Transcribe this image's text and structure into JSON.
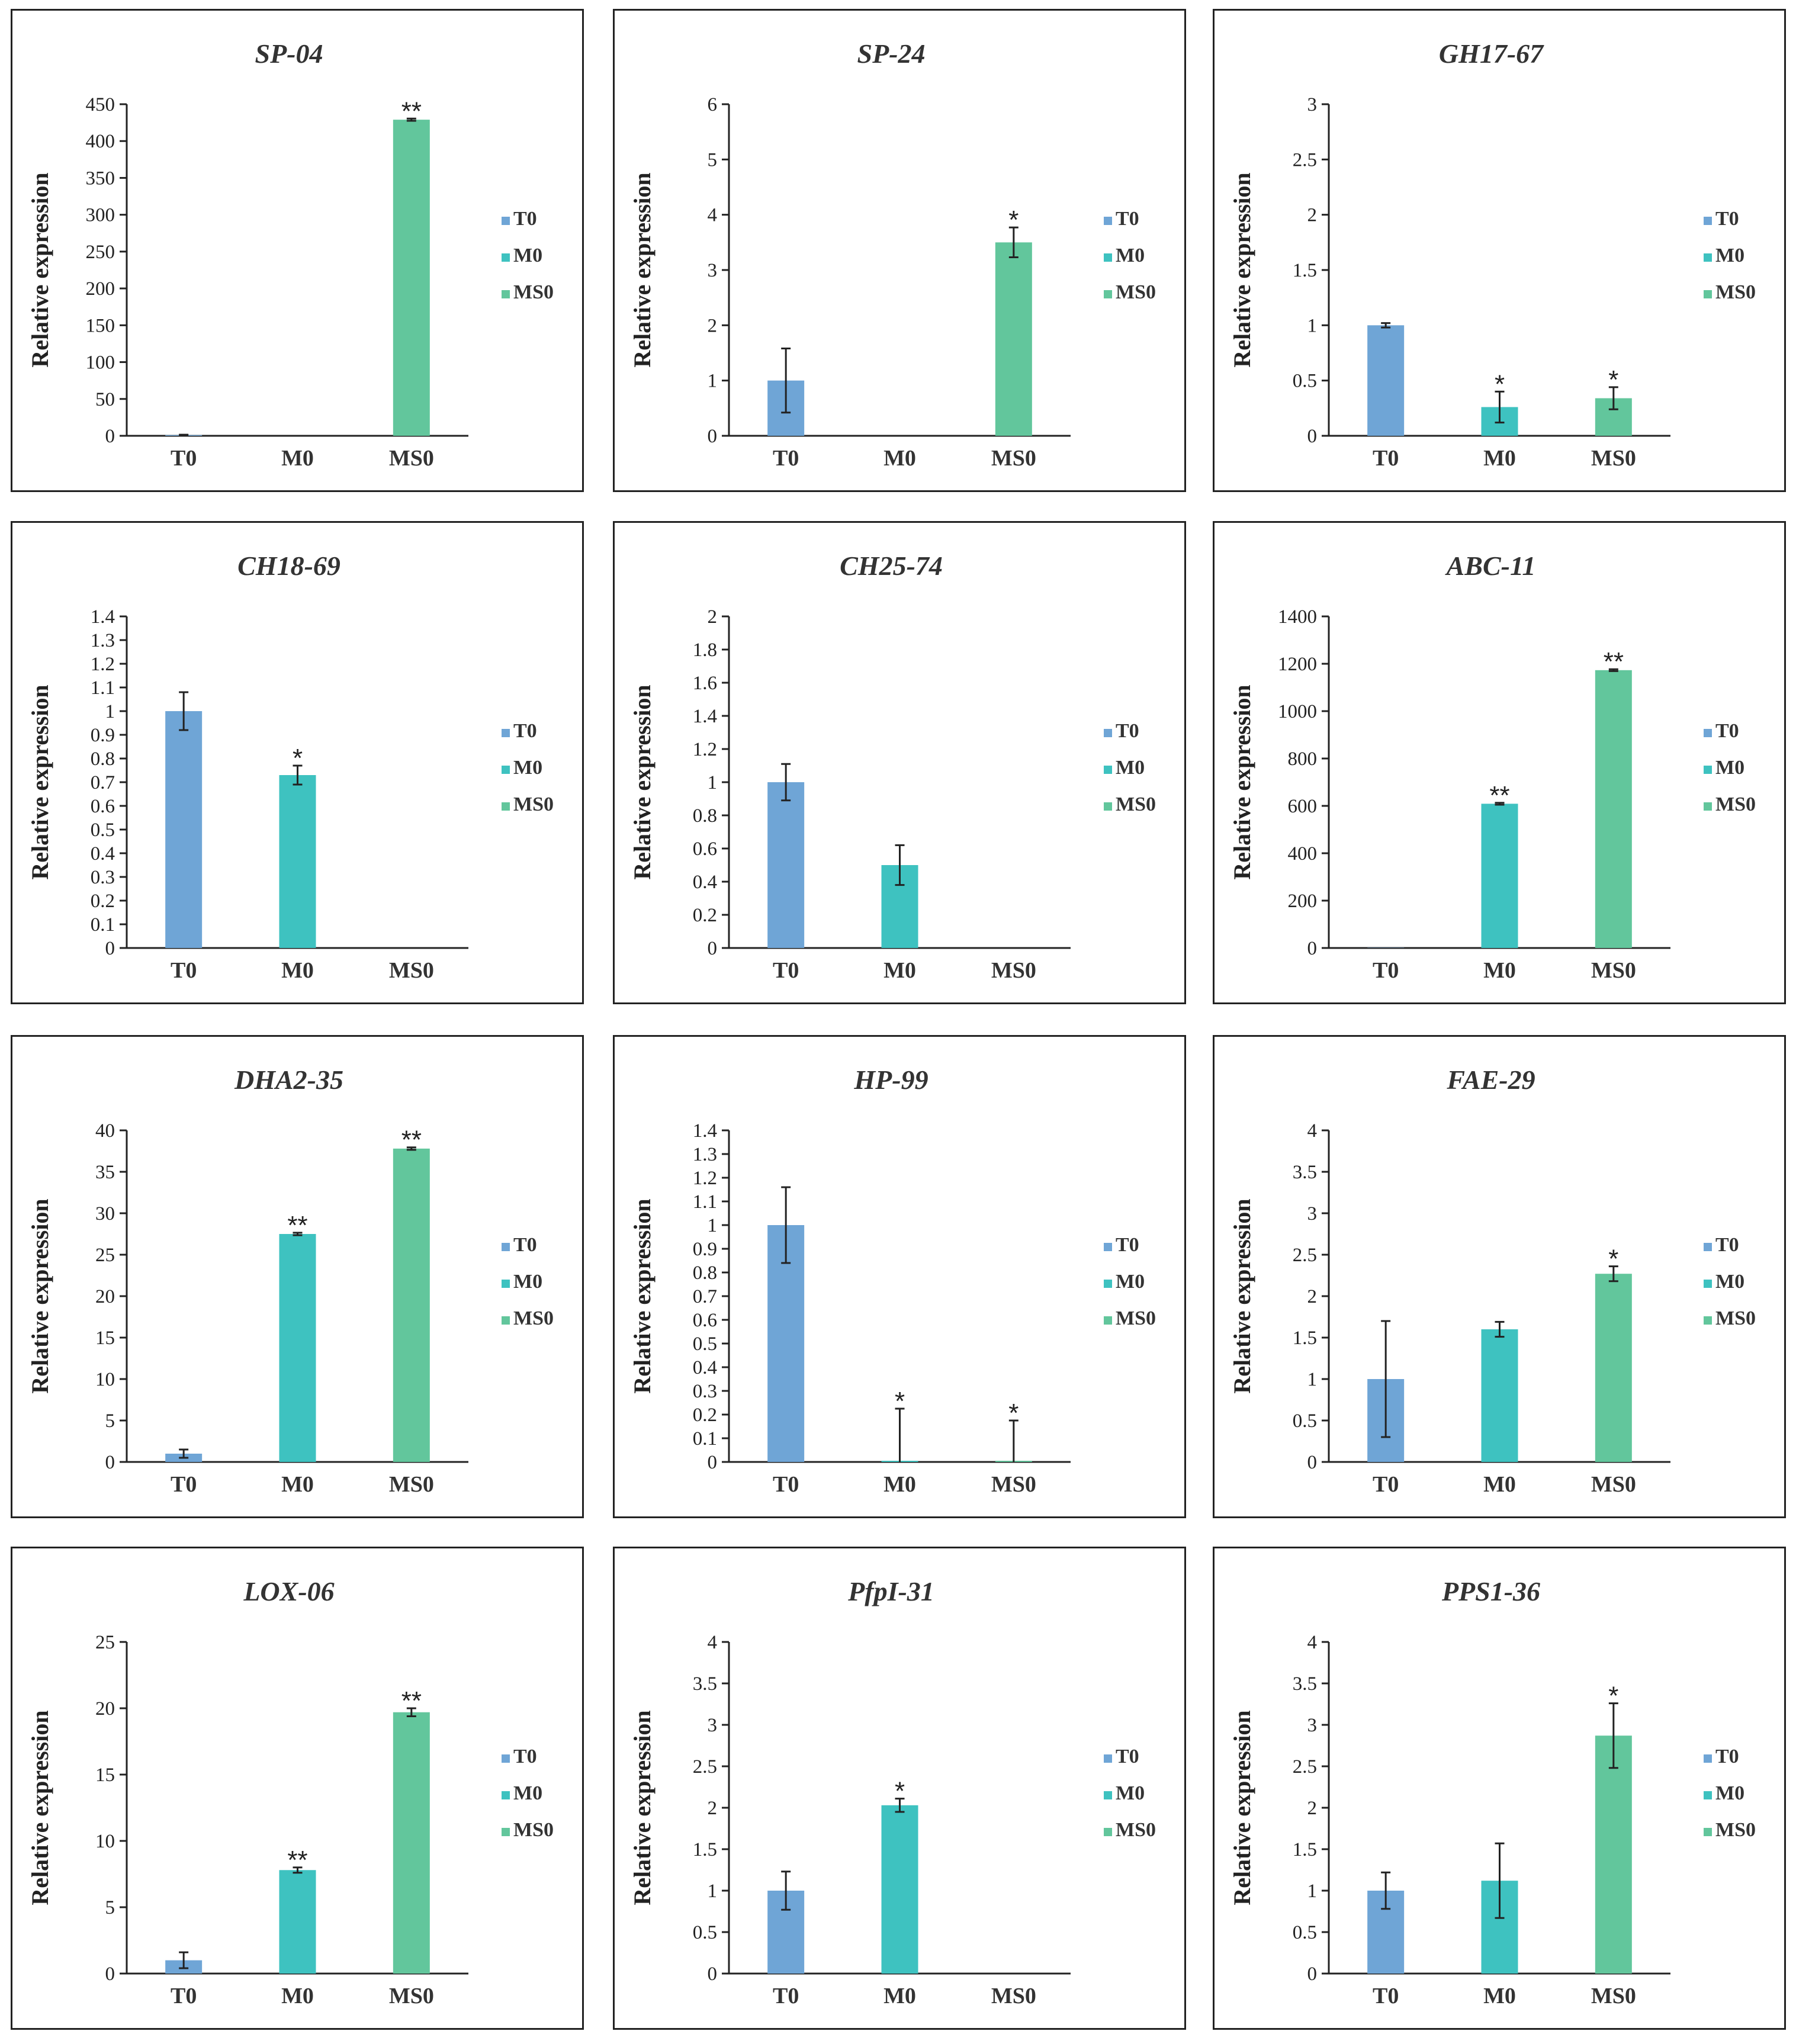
{
  "colors": {
    "T0": "#6fa5d6",
    "M0": "#3ec2c0",
    "MS0": "#62c69c"
  },
  "chart_data": [
    {
      "type": "bar",
      "title": "SP-04",
      "ylabel": "Relative expression",
      "categories": [
        "T0",
        "M0",
        "MS0"
      ],
      "values": [
        1,
        0,
        429
      ],
      "errors": [
        0.5,
        0,
        1.5
      ],
      "annotations": [
        "",
        "",
        "**"
      ],
      "ylim": [
        0,
        450
      ],
      "yticks": [
        "0",
        "50",
        "100",
        "150",
        "200",
        "250",
        "300",
        "350",
        "400",
        "450"
      ],
      "legend": [
        "T0",
        "M0",
        "MS0"
      ]
    },
    {
      "type": "bar",
      "title": "SP-24",
      "ylabel": "Relative expression",
      "categories": [
        "T0",
        "M0",
        "MS0"
      ],
      "values": [
        1,
        0,
        3.5
      ],
      "errors": [
        0.58,
        0,
        0.27
      ],
      "annotations": [
        "",
        "",
        "*"
      ],
      "ylim": [
        0,
        6
      ],
      "yticks": [
        "0",
        "1",
        "2",
        "3",
        "4",
        "5",
        "6"
      ],
      "legend": [
        "T0",
        "M0",
        "MS0"
      ]
    },
    {
      "type": "bar",
      "title": "GH17-67",
      "ylabel": "Relative expression",
      "categories": [
        "T0",
        "M0",
        "MS0"
      ],
      "values": [
        1,
        0.26,
        0.34
      ],
      "errors": [
        0.02,
        0.14,
        0.1
      ],
      "annotations": [
        "",
        "*",
        "*"
      ],
      "ylim": [
        0,
        3
      ],
      "yticks": [
        "0",
        "0.5",
        "1",
        "1.5",
        "2",
        "2.5",
        "3"
      ],
      "legend": [
        "T0",
        "M0",
        "MS0"
      ]
    },
    {
      "type": "bar",
      "title": "CH18-69",
      "ylabel": "Relative expression",
      "categories": [
        "T0",
        "M0",
        "MS0"
      ],
      "values": [
        1,
        0.73,
        0
      ],
      "errors": [
        0.08,
        0.04,
        0
      ],
      "annotations": [
        "",
        "*",
        ""
      ],
      "ylim": [
        0,
        1.4
      ],
      "yticks": [
        "0",
        "0.1",
        "0.2",
        "0.3",
        "0.4",
        "0.5",
        "0.6",
        "0.7",
        "0.8",
        "0.9",
        "1",
        "1.1",
        "1.2",
        "1.3",
        "1.4"
      ],
      "legend": [
        "T0",
        "M0",
        "MS0"
      ]
    },
    {
      "type": "bar",
      "title": "CH25-74",
      "ylabel": "Relative expression",
      "categories": [
        "T0",
        "M0",
        "MS0"
      ],
      "values": [
        1,
        0.5,
        0
      ],
      "errors": [
        0.11,
        0.12,
        0
      ],
      "annotations": [
        "",
        "",
        ""
      ],
      "ylim": [
        0,
        2
      ],
      "yticks": [
        "0",
        "0.2",
        "0.4",
        "0.6",
        "0.8",
        "1",
        "1.2",
        "1.4",
        "1.6",
        "1.8",
        "2"
      ],
      "legend": [
        "T0",
        "M0",
        "MS0"
      ]
    },
    {
      "type": "bar",
      "title": "ABC-11",
      "ylabel": "Relative expression",
      "categories": [
        "T0",
        "M0",
        "MS0"
      ],
      "values": [
        1,
        609,
        1173
      ],
      "errors": [
        0,
        4,
        4
      ],
      "annotations": [
        "",
        "**",
        "**"
      ],
      "ylim": [
        0,
        1400
      ],
      "yticks": [
        "0",
        "200",
        "400",
        "600",
        "800",
        "1000",
        "1200",
        "1400"
      ],
      "legend": [
        "T0",
        "M0",
        "MS0"
      ]
    },
    {
      "type": "bar",
      "title": "DHA2-35",
      "ylabel": "Relative expression",
      "categories": [
        "T0",
        "M0",
        "MS0"
      ],
      "values": [
        1,
        27.5,
        37.8
      ],
      "errors": [
        0.5,
        0.15,
        0.15
      ],
      "annotations": [
        "",
        "**",
        "**"
      ],
      "ylim": [
        0,
        40
      ],
      "yticks": [
        "0",
        "5",
        "10",
        "15",
        "20",
        "25",
        "30",
        "35",
        "40"
      ],
      "legend": [
        "T0",
        "M0",
        "MS0"
      ]
    },
    {
      "type": "bar",
      "title": "HP-99",
      "ylabel": "Relative expression",
      "categories": [
        "T0",
        "M0",
        "MS0"
      ],
      "values": [
        1,
        0.005,
        0.005
      ],
      "errors": [
        0.16,
        0.22,
        0.17
      ],
      "annotations": [
        "",
        "*",
        "*"
      ],
      "ylim": [
        0,
        1.4
      ],
      "yticks": [
        "0",
        "0.1",
        "0.2",
        "0.3",
        "0.4",
        "0.5",
        "0.6",
        "0.7",
        "0.8",
        "0.9",
        "1",
        "1.1",
        "1.2",
        "1.3",
        "1.4"
      ],
      "legend": [
        "T0",
        "M0",
        "MS0"
      ]
    },
    {
      "type": "bar",
      "title": "FAE-29",
      "ylabel": "Relative expression",
      "categories": [
        "T0",
        "M0",
        "MS0"
      ],
      "values": [
        1,
        1.6,
        2.27
      ],
      "errors": [
        0.7,
        0.09,
        0.09
      ],
      "annotations": [
        "",
        "",
        "*"
      ],
      "ylim": [
        0,
        4
      ],
      "yticks": [
        "0",
        "0.5",
        "1",
        "1.5",
        "2",
        "2.5",
        "3",
        "3.5",
        "4"
      ],
      "legend": [
        "T0",
        "M0",
        "MS0"
      ]
    },
    {
      "type": "bar",
      "title": "LOX-06",
      "ylabel": "Relative expression",
      "categories": [
        "T0",
        "M0",
        "MS0"
      ],
      "values": [
        1,
        7.8,
        19.7
      ],
      "errors": [
        0.6,
        0.2,
        0.3
      ],
      "annotations": [
        "",
        "**",
        "**"
      ],
      "ylim": [
        0,
        25
      ],
      "yticks": [
        "0",
        "5",
        "10",
        "15",
        "20",
        "25"
      ],
      "legend": [
        "T0",
        "M0",
        "MS0"
      ]
    },
    {
      "type": "bar",
      "title": "PfpI-31",
      "ylabel": "Relative expression",
      "categories": [
        "T0",
        "M0",
        "MS0"
      ],
      "values": [
        1,
        2.03,
        0
      ],
      "errors": [
        0.23,
        0.08,
        0
      ],
      "annotations": [
        "",
        "*",
        ""
      ],
      "ylim": [
        0,
        4
      ],
      "yticks": [
        "0",
        "0.5",
        "1",
        "1.5",
        "2",
        "2.5",
        "3",
        "3.5",
        "4"
      ],
      "legend": [
        "T0",
        "M0",
        "MS0"
      ]
    },
    {
      "type": "bar",
      "title": "PPS1-36",
      "ylabel": "Relative expression",
      "categories": [
        "T0",
        "M0",
        "MS0"
      ],
      "values": [
        1,
        1.12,
        2.87
      ],
      "errors": [
        0.22,
        0.45,
        0.39
      ],
      "annotations": [
        "",
        "",
        "*"
      ],
      "ylim": [
        0,
        4
      ],
      "yticks": [
        "0",
        "0.5",
        "1",
        "1.5",
        "2",
        "2.5",
        "3",
        "3.5",
        "4"
      ],
      "legend": [
        "T0",
        "M0",
        "MS0"
      ]
    }
  ]
}
